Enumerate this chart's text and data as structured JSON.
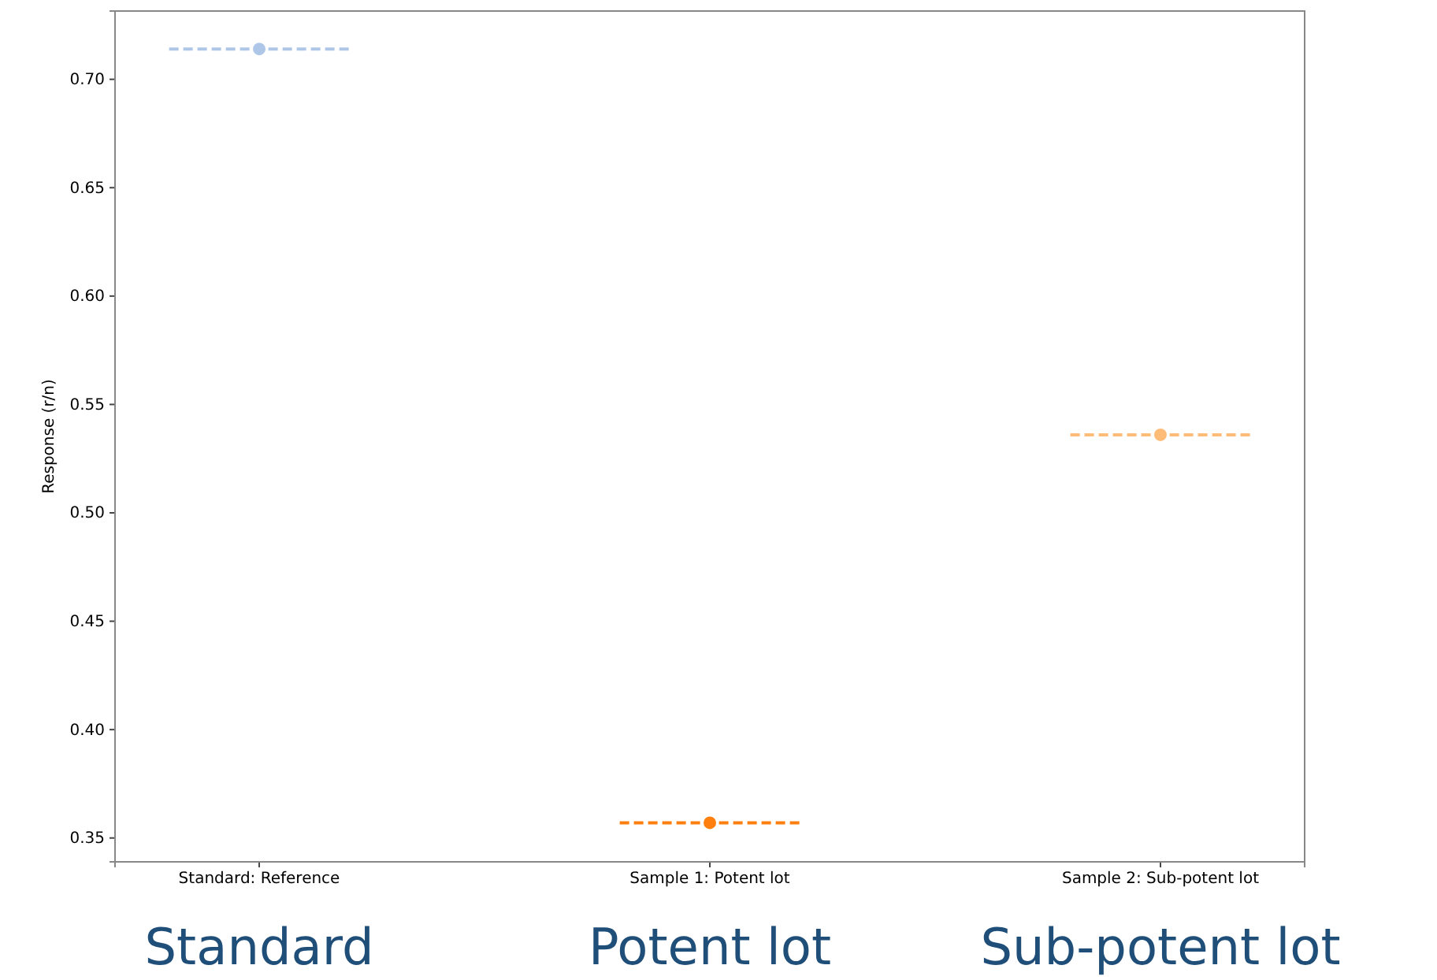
{
  "chart_data": {
    "type": "box",
    "ylabel": "Response (r/n)",
    "categories": [
      "Standard: Reference",
      "Sample 1: Potent lot",
      "Sample 2: Sub-potent lot"
    ],
    "boxes": [
      {
        "low": 0.714,
        "q1": 0.714,
        "median": 0.714,
        "q3": 0.714,
        "high": 0.714,
        "mean": 0.714
      },
      {
        "low": 0.357,
        "q1": 0.357,
        "median": 0.357,
        "q3": 0.357,
        "high": 0.357,
        "mean": 0.357
      },
      {
        "low": 0.536,
        "q1": 0.536,
        "median": 0.536,
        "q3": 0.536,
        "high": 0.536,
        "mean": 0.536
      }
    ],
    "colors": [
      "#aec7e8",
      "#ff7f0e",
      "#ffbb78"
    ],
    "ylim": [
      0.339,
      0.7315
    ],
    "yticks": [
      {
        "value": 0.35,
        "label": "0.35"
      },
      {
        "value": 0.4,
        "label": "0.40"
      },
      {
        "value": 0.45,
        "label": "0.45"
      },
      {
        "value": 0.5,
        "label": "0.50"
      },
      {
        "value": 0.55,
        "label": "0.55"
      },
      {
        "value": 0.6,
        "label": "0.60"
      },
      {
        "value": 0.65,
        "label": "0.65"
      },
      {
        "value": 0.7,
        "label": "0.70"
      }
    ],
    "marker": "circle",
    "line_style": "dashed",
    "grid": false,
    "annotations": [
      "Standard",
      "Potent lot",
      "Sub-potent lot"
    ]
  }
}
